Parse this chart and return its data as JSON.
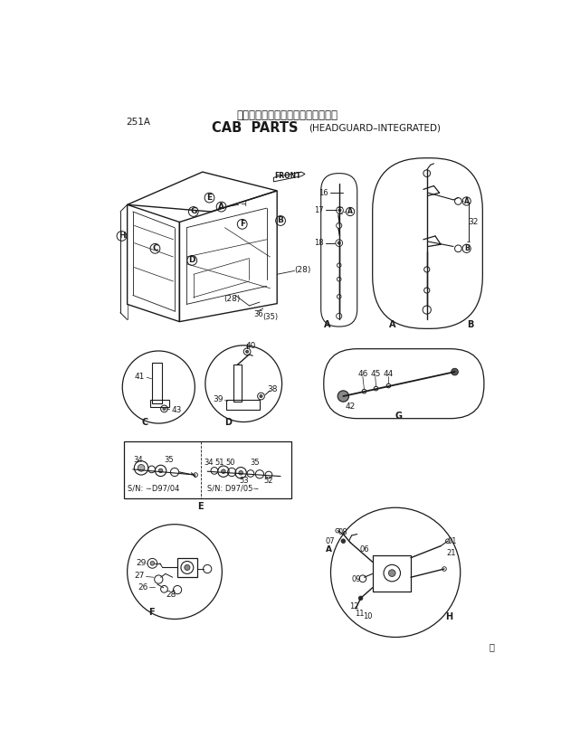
{
  "title_japanese": "キャブ部品（ヘッドガード一体型）",
  "title_english_main": "CAB  PARTS",
  "title_english_sub": "(HEADGUARD–INTEGRATED)",
  "page_number": "251A",
  "bg_color": "#ffffff",
  "line_color": "#1a1a1a",
  "text_color": "#1a1a1a",
  "fig_width": 6.2,
  "fig_height": 8.27
}
